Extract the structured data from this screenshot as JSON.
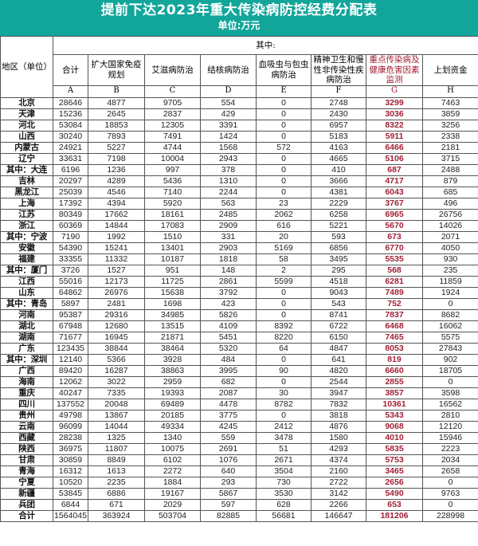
{
  "title": "提前下达2023年重大传染病防控经费分配表",
  "unit": "单位:万元",
  "colors": {
    "header_band": "#12a69b",
    "highlight_column": "#a32035"
  },
  "header": {
    "region": "地区（单位）",
    "qizhong": "其中:",
    "columns": [
      "合计",
      "扩大国家免疫规划",
      "艾滋病防治",
      "结核病防治",
      "血吸虫与包虫病防治",
      "精神卫生和慢性非传染性疾病防治",
      "重点传染病及健康危害因素监测",
      "上划资金"
    ],
    "letters": [
      "A",
      "B",
      "C",
      "D",
      "E",
      "F",
      "G",
      "H"
    ]
  },
  "rows": [
    [
      "北京",
      "28646",
      "4877",
      "9705",
      "554",
      "0",
      "2748",
      "3299",
      "7463"
    ],
    [
      "天津",
      "15236",
      "2645",
      "2837",
      "429",
      "0",
      "2430",
      "3036",
      "3859"
    ],
    [
      "河北",
      "53084",
      "18853",
      "12305",
      "3391",
      "0",
      "6957",
      "8322",
      "3256"
    ],
    [
      "山西",
      "30240",
      "7893",
      "7491",
      "1424",
      "0",
      "5183",
      "5911",
      "2338"
    ],
    [
      "内蒙古",
      "24921",
      "5227",
      "4744",
      "1568",
      "572",
      "4163",
      "6466",
      "2181"
    ],
    [
      "辽宁",
      "33631",
      "7198",
      "10004",
      "2943",
      "0",
      "4665",
      "5106",
      "3715"
    ],
    [
      "其中：大连",
      "6196",
      "1236",
      "997",
      "378",
      "0",
      "410",
      "687",
      "2488"
    ],
    [
      "吉林",
      "20297",
      "4289",
      "5436",
      "1310",
      "0",
      "3666",
      "4717",
      "879"
    ],
    [
      "黑龙江",
      "25039",
      "4546",
      "7140",
      "2244",
      "0",
      "4381",
      "6043",
      "685"
    ],
    [
      "上海",
      "17392",
      "4394",
      "5920",
      "563",
      "23",
      "2229",
      "3767",
      "496"
    ],
    [
      "江苏",
      "80349",
      "17662",
      "18161",
      "2485",
      "2062",
      "6258",
      "6965",
      "26756"
    ],
    [
      "浙江",
      "60369",
      "14844",
      "17083",
      "2909",
      "616",
      "5221",
      "5670",
      "14026"
    ],
    [
      "其中：宁波",
      "7190",
      "1992",
      "1510",
      "331",
      "20",
      "593",
      "673",
      "2071"
    ],
    [
      "安徽",
      "54390",
      "15241",
      "13401",
      "2903",
      "5169",
      "6856",
      "6770",
      "4050"
    ],
    [
      "福建",
      "33355",
      "11332",
      "10187",
      "1818",
      "58",
      "3495",
      "5535",
      "930"
    ],
    [
      "其中：厦门",
      "3726",
      "1527",
      "951",
      "148",
      "2",
      "295",
      "568",
      "235"
    ],
    [
      "江西",
      "55016",
      "12173",
      "11725",
      "2861",
      "5599",
      "4518",
      "6281",
      "11859"
    ],
    [
      "山东",
      "64862",
      "26976",
      "15638",
      "3792",
      "0",
      "9043",
      "7489",
      "1924"
    ],
    [
      "其中：青岛",
      "5897",
      "2481",
      "1698",
      "423",
      "0",
      "543",
      "752",
      "0"
    ],
    [
      "河南",
      "95387",
      "29316",
      "34985",
      "5826",
      "0",
      "8741",
      "7837",
      "8682"
    ],
    [
      "湖北",
      "67948",
      "12680",
      "13515",
      "4109",
      "8392",
      "6722",
      "6468",
      "16062"
    ],
    [
      "湖南",
      "71677",
      "16945",
      "21871",
      "5451",
      "8220",
      "6150",
      "7465",
      "5575"
    ],
    [
      "广东",
      "123435",
      "38844",
      "38464",
      "5320",
      "64",
      "4847",
      "8053",
      "27843"
    ],
    [
      "其中：深圳",
      "12140",
      "5366",
      "3928",
      "484",
      "0",
      "641",
      "819",
      "902"
    ],
    [
      "广西",
      "89420",
      "16287",
      "38863",
      "3995",
      "90",
      "4820",
      "6660",
      "18705"
    ],
    [
      "海南",
      "12062",
      "3022",
      "2959",
      "682",
      "0",
      "2544",
      "2855",
      "0"
    ],
    [
      "重庆",
      "40247",
      "7335",
      "19393",
      "2087",
      "30",
      "3947",
      "3857",
      "3598"
    ],
    [
      "四川",
      "137552",
      "20048",
      "69489",
      "4478",
      "8782",
      "7832",
      "10361",
      "16562"
    ],
    [
      "贵州",
      "49798",
      "13867",
      "20185",
      "3775",
      "0",
      "3818",
      "5343",
      "2810"
    ],
    [
      "云南",
      "96099",
      "14044",
      "49334",
      "4245",
      "2412",
      "4876",
      "9068",
      "12120"
    ],
    [
      "西藏",
      "28238",
      "1325",
      "1340",
      "559",
      "3478",
      "1580",
      "4010",
      "15946"
    ],
    [
      "陕西",
      "36975",
      "11807",
      "10075",
      "2691",
      "51",
      "4293",
      "5835",
      "2223"
    ],
    [
      "甘肃",
      "30859",
      "8849",
      "6102",
      "1076",
      "2671",
      "4374",
      "5753",
      "2034"
    ],
    [
      "青海",
      "16312",
      "1613",
      "2272",
      "640",
      "3504",
      "2160",
      "3465",
      "2658"
    ],
    [
      "宁夏",
      "10520",
      "2235",
      "1884",
      "293",
      "730",
      "2722",
      "2656",
      "0"
    ],
    [
      "新疆",
      "53845",
      "6886",
      "19167",
      "5867",
      "3530",
      "3142",
      "5490",
      "9763"
    ],
    [
      "兵团",
      "6844",
      "671",
      "2029",
      "597",
      "628",
      "2266",
      "653",
      "0"
    ],
    [
      "合计",
      "1564045",
      "363924",
      "503704",
      "82885",
      "56681",
      "146647",
      "181206",
      "228998"
    ]
  ]
}
